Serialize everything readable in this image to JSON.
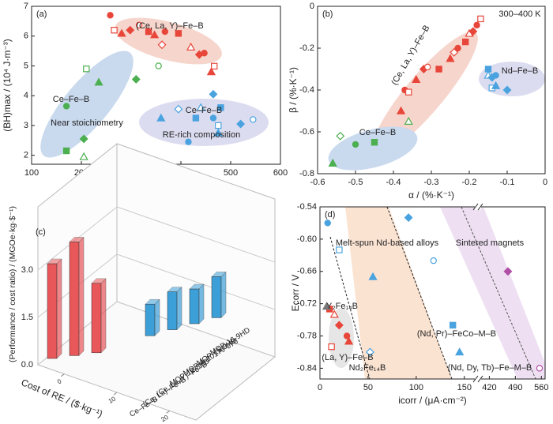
{
  "chart_data": [
    {
      "type": "scatter",
      "panel": "(a)",
      "xlabel": "Hcj / (kA·m⁻¹)",
      "ylabel": "(BH)max / (10⁴ J·m⁻³)",
      "xlim": [
        100,
        600
      ],
      "ylim": [
        1.7,
        7
      ],
      "xticks": [
        100,
        200,
        300,
        400,
        500,
        600
      ],
      "yticks": [
        2,
        3,
        4,
        5,
        6,
        7
      ],
      "series": [
        {
          "name": "(Ce, La, Y)–Fe–B",
          "color": "#e8463a",
          "x": [
            258,
            266,
            281,
            298,
            316,
            335,
            347,
            362,
            368,
            395,
            420,
            437,
            447,
            467,
            461
          ],
          "y": [
            6.7,
            6.2,
            6.09,
            6.2,
            6.37,
            6.15,
            6.04,
            5.71,
            6.15,
            6.09,
            5.63,
            5.38,
            5.43,
            4.99,
            4.8
          ]
        },
        {
          "name": "Ce–Fe–B",
          "color": "#4caf50",
          "x": [
            170,
            205,
            205,
            170,
            210,
            235,
            310,
            355
          ],
          "y": [
            2.15,
            1.95,
            2.55,
            3.65,
            4.9,
            4.45,
            4.55,
            5.0
          ]
        },
        {
          "name": "Ce–Fe–B",
          "color": "#4aa3df",
          "x": [
            360,
            395,
            415,
            430,
            440,
            465,
            465,
            475,
            475,
            520,
            545,
            480
          ],
          "y": [
            3.25,
            3.55,
            2.45,
            3.25,
            3.6,
            4.05,
            3.25,
            3.0,
            2.75,
            3.05,
            3.2,
            3.6
          ]
        }
      ],
      "annotations": [
        "Near stoichiometry",
        "RE-rich composition"
      ]
    },
    {
      "type": "scatter",
      "panel": "(b)",
      "xlabel": "α / (%·K⁻¹)",
      "ylabel": "β / (%·K⁻¹)",
      "xlim": [
        -0.6,
        0
      ],
      "ylim": [
        -0.8,
        0
      ],
      "xticks": [
        -0.6,
        -0.5,
        -0.4,
        -0.3,
        -0.2,
        -0.1,
        0
      ],
      "yticks": [
        -0.8,
        -0.6,
        -0.4,
        -0.2,
        0
      ],
      "series": [
        {
          "name": "(Ce, La, Y)–Fe–B",
          "color": "#e8463a",
          "x": [
            -0.37,
            -0.36,
            -0.34,
            -0.32,
            -0.31,
            -0.28,
            -0.25,
            -0.24,
            -0.23,
            -0.21,
            -0.2,
            -0.19,
            -0.18,
            -0.17,
            -0.38
          ],
          "y": [
            -0.4,
            -0.41,
            -0.35,
            -0.3,
            -0.29,
            -0.3,
            -0.25,
            -0.22,
            -0.2,
            -0.17,
            -0.13,
            -0.12,
            -0.09,
            -0.06,
            -0.5
          ]
        },
        {
          "name": "Nd–Fe–B",
          "color": "#4aa3df",
          "x": [
            -0.15,
            -0.15,
            -0.14,
            -0.13,
            -0.14,
            -0.13,
            -0.1
          ],
          "y": [
            -0.3,
            -0.33,
            -0.34,
            -0.33,
            -0.39,
            -0.38,
            -0.4
          ]
        },
        {
          "name": "Ce–Fe–B",
          "color": "#4caf50",
          "x": [
            -0.56,
            -0.54,
            -0.5,
            -0.45,
            -0.36
          ],
          "y": [
            -0.75,
            -0.62,
            -0.66,
            -0.65,
            -0.55
          ]
        }
      ],
      "annotations": [
        "300–400 K"
      ]
    },
    {
      "type": "bar3d",
      "panel": "(c)",
      "xlabel": "Cost of RE / ($·kg⁻¹)",
      "ylabel": "(Performance / cost ratio) / (MGOe·kg·$⁻¹)",
      "ylim": [
        0,
        4.5
      ],
      "yticks": [
        {
          "value": 0,
          "label": "0.0"
        },
        {
          "value": 1.5,
          "label": "1.5"
        },
        {
          "value": 3,
          "label": "3.0"
        }
      ],
      "xticks": [
        0,
        10,
        20
      ],
      "categories": [
        "Ce–Fe–B",
        "(Ce, La)–Fe–B",
        "(Ce, La, Y)–Fe–B",
        "MQP-12-8HD",
        "MQP-A-10179-070",
        "MQP-15-9HD",
        "MQP-16-9HD"
      ],
      "values": [
        3.0,
        3.6,
        2.2,
        1.0,
        1.2,
        1.1,
        1.3
      ],
      "colors": [
        "#e8575a",
        "#e8575a",
        "#e8575a",
        "#3d9fd8",
        "#3d9fd8",
        "#3d9fd8",
        "#3d9fd8"
      ]
    },
    {
      "type": "scatter",
      "panel": "(d)",
      "xlabel": "icorr / (μA·cm⁻²)",
      "ylabel": "Ecorr / V",
      "xlim": [
        0,
        570
      ],
      "xbreak": [
        160,
        400
      ],
      "ylim": [
        -0.86,
        -0.54
      ],
      "xticks": [
        0,
        50,
        100,
        150,
        420,
        490,
        560
      ],
      "yticks": [
        -0.54,
        {
          "value": -0.6,
          "label": "-0.60"
        },
        -0.66,
        -0.72,
        -0.78,
        -0.84
      ],
      "series": [
        {
          "name": "Melt-spun Nd-based alloys",
          "color": "#4aa3df",
          "x": [
            8,
            20,
            55,
            92,
            118,
            138,
            145,
            52
          ],
          "y": [
            -0.57,
            -0.62,
            -0.67,
            -0.56,
            -0.64,
            -0.76,
            -0.81,
            -0.81
          ]
        },
        {
          "name": "(La, Y)–Fe–B",
          "color": "#e8463a",
          "x": [
            10,
            15,
            20,
            28,
            12,
            30
          ],
          "y": [
            -0.73,
            -0.74,
            -0.76,
            -0.78,
            -0.8,
            -0.79
          ]
        },
        {
          "name": "Y₂Fe₁₄B",
          "color": "#777777",
          "x": [
            7
          ],
          "y": [
            -0.725
          ]
        },
        {
          "name": "Sintered magnets",
          "color": "#b04fa6",
          "x": [
            470,
            555
          ],
          "y": [
            -0.66,
            -0.84
          ]
        }
      ],
      "annotations": [
        "Nd₂Fe₁₄B",
        "(Nd, Pr)–FeCo–M–B",
        "(Nd, Dy, Tb)–Fe–M–B"
      ]
    }
  ]
}
